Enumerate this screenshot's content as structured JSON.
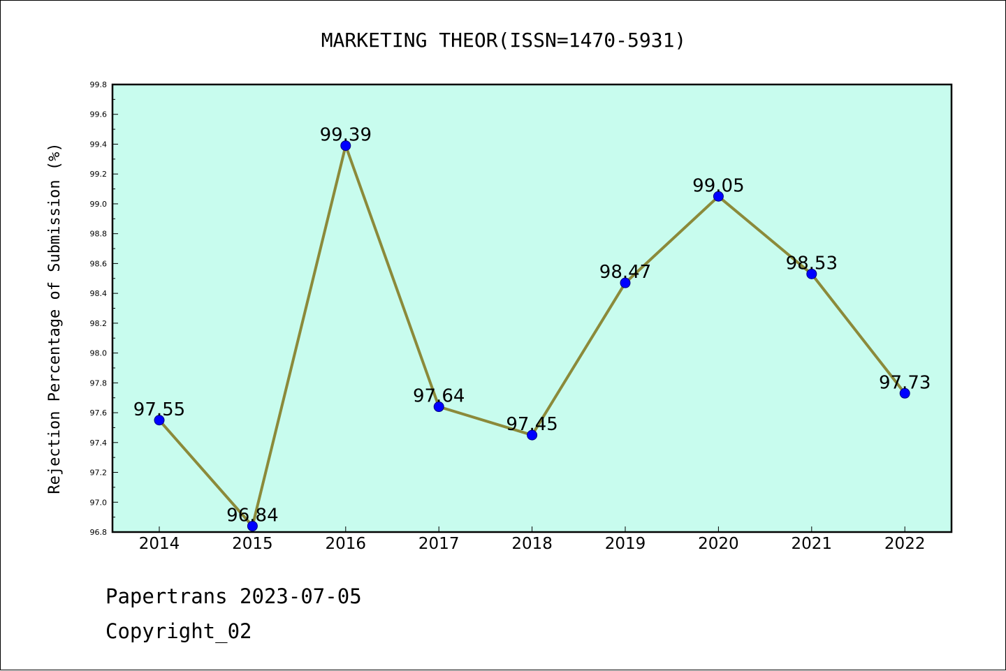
{
  "chart_data": {
    "type": "line",
    "title": "MARKETING THEOR(ISSN=1470-5931)",
    "xlabel": "",
    "ylabel": "Rejection Percentage of Submission (%)",
    "categories": [
      "2014",
      "2015",
      "2016",
      "2017",
      "2018",
      "2019",
      "2020",
      "2021",
      "2022"
    ],
    "series": [
      {
        "values": [
          97.55,
          96.84,
          99.39,
          97.64,
          97.45,
          98.47,
          99.05,
          98.53,
          97.73
        ],
        "labels": [
          "97.55",
          "96.84",
          "99.39",
          "97.64",
          "97.45",
          "98.47",
          "99.05",
          "98.53",
          "97.73"
        ]
      }
    ],
    "ylim": [
      96.8,
      99.8
    ],
    "yticks": [
      "96.8",
      "97.0",
      "97.2",
      "97.4",
      "97.6",
      "97.8",
      "98.0",
      "98.2",
      "98.4",
      "98.6",
      "98.8",
      "99.0",
      "99.2",
      "99.4",
      "99.6",
      "99.8"
    ],
    "grid": false,
    "legend": "none",
    "colors": {
      "plot_background": "#c8fcee",
      "line": "#8b8a3a",
      "marker": "#0000ff",
      "marker_edge": "#000080"
    }
  },
  "footer": {
    "line1": "Papertrans 2023-07-05",
    "line2": "Copyright_02"
  }
}
